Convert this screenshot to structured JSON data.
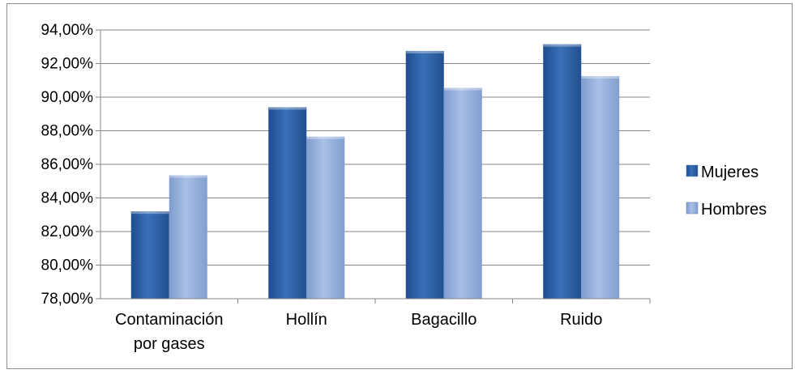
{
  "chart_data": {
    "type": "bar",
    "categories": [
      [
        "Contaminación",
        "por gases"
      ],
      [
        "Hollín"
      ],
      [
        "Bagacillo"
      ],
      [
        "Ruido"
      ]
    ],
    "series": [
      {
        "name": "Mujeres",
        "values": [
          83.2,
          89.4,
          92.75,
          93.15
        ],
        "color": "#2f62a9"
      },
      {
        "name": "Hombres",
        "values": [
          85.35,
          87.65,
          90.55,
          91.25
        ],
        "color": "#94b0dc"
      }
    ],
    "ylim": [
      78,
      94
    ],
    "yticks": [
      "78,00%",
      "80,00%",
      "82,00%",
      "84,00%",
      "86,00%",
      "88,00%",
      "90,00%",
      "92,00%",
      "94,00%"
    ],
    "ytick_values": [
      78,
      80,
      82,
      84,
      86,
      88,
      90,
      92,
      94
    ],
    "grid": true,
    "legend_position": "right"
  }
}
